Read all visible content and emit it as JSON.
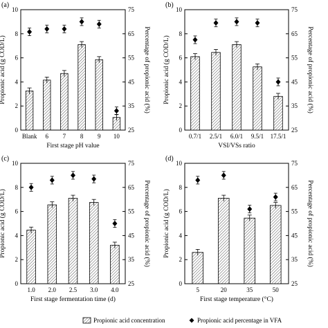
{
  "chart_data": [
    {
      "type": "bar",
      "panel_label": "(a)",
      "categories": [
        "Blank",
        "6",
        "7",
        "8",
        "9",
        "10"
      ],
      "xlabel": "First stage pH value",
      "ylabel": "Propionic acid (g COD/L)",
      "y2label": "Percentage of propionic acid (%)",
      "ylim": [
        0,
        10
      ],
      "y2lim": [
        25,
        75
      ],
      "yticks": [
        0,
        2,
        4,
        6,
        8,
        10
      ],
      "y2ticks": [
        25,
        35,
        45,
        55,
        65,
        75
      ],
      "series": [
        {
          "values": [
            3.25,
            4.15,
            4.7,
            7.1,
            5.85,
            1.05
          ]
        },
        {
          "values": [
            65.8,
            67,
            67,
            70,
            69,
            33
          ]
        }
      ]
    },
    {
      "type": "bar",
      "panel_label": "(b)",
      "categories": [
        "0.7/1",
        "2.5/1",
        "6.0/1",
        "9.5/1",
        "17.5/1"
      ],
      "xlabel": "VSI/VSs ratio",
      "ylabel": "Propionic acid (g COD/L)",
      "y2label": "Percentage of propionic acid (%)",
      "ylim": [
        0,
        10
      ],
      "y2lim": [
        25,
        75
      ],
      "yticks": [
        0,
        2,
        4,
        6,
        8,
        10
      ],
      "y2ticks": [
        25,
        35,
        45,
        55,
        65,
        75
      ],
      "series": [
        {
          "values": [
            6.1,
            6.45,
            7.1,
            5.25,
            2.8
          ]
        },
        {
          "values": [
            62.5,
            69.5,
            70,
            69.5,
            45
          ]
        }
      ]
    },
    {
      "type": "bar",
      "panel_label": "(c)",
      "categories": [
        "1.0",
        "2.0",
        "2.5",
        "3.0",
        "4.0"
      ],
      "xlabel": "First stage fermentation time (d)",
      "ylabel": "Propionic acid (g COD/L)",
      "y2label": "Percentage of propionic acid (%)",
      "ylim": [
        0,
        10
      ],
      "y2lim": [
        25,
        75
      ],
      "yticks": [
        0,
        2,
        4,
        6,
        8,
        10
      ],
      "y2ticks": [
        25,
        35,
        45,
        55,
        65,
        75
      ],
      "series": [
        {
          "values": [
            4.45,
            6.55,
            7.1,
            6.75,
            3.2
          ]
        },
        {
          "values": [
            65,
            68,
            70,
            68.5,
            50
          ]
        }
      ]
    },
    {
      "type": "bar",
      "panel_label": "(d)",
      "categories": [
        "5",
        "20",
        "35",
        "50"
      ],
      "xlabel": "First stage temperature (°C)",
      "ylabel": "Propionic acid (g COD/L)",
      "y2label": "Percentage of propionic acid (%)",
      "ylim": [
        0,
        10
      ],
      "y2lim": [
        25,
        75
      ],
      "yticks": [
        0,
        2,
        4,
        6,
        8,
        10
      ],
      "y2ticks": [
        25,
        35,
        45,
        55,
        65,
        75
      ],
      "series": [
        {
          "values": [
            2.6,
            7.1,
            5.45,
            6.5
          ]
        },
        {
          "values": [
            68,
            70,
            56,
            61
          ]
        }
      ]
    }
  ],
  "legend": {
    "bar_label": "Propionic acid concentration",
    "marker_label": "Propionic acid percentage in VFA"
  }
}
